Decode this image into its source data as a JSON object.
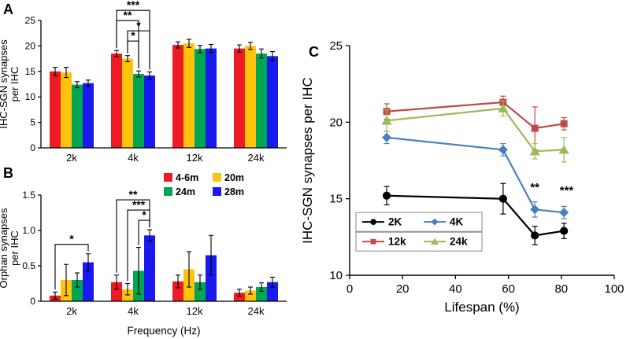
{
  "figure": {
    "panel_labels": {
      "a": "A",
      "b": "B",
      "c": "C"
    },
    "background": "#ffffff"
  },
  "chart_data": [
    {
      "id": "A",
      "type": "bar",
      "title": "",
      "ylabel_lines": [
        "IHC-SGN synapses",
        "per IHC"
      ],
      "categories": [
        "2k",
        "4k",
        "12k",
        "24k"
      ],
      "ylim": [
        0,
        25
      ],
      "yticks": [
        0,
        5,
        10,
        15,
        20,
        25
      ],
      "yticklabels": [
        "0",
        "5",
        "10",
        "15",
        "20",
        "25"
      ],
      "series": [
        {
          "name": "4-6m",
          "color": "#ED1C24",
          "values": [
            15.0,
            18.5,
            20.2,
            19.5
          ],
          "errors": [
            0.8,
            0.6,
            0.6,
            0.7
          ]
        },
        {
          "name": "20m",
          "color": "#FFC20E",
          "values": [
            14.8,
            17.5,
            20.5,
            20.0
          ],
          "errors": [
            1.0,
            0.6,
            0.8,
            0.7
          ]
        },
        {
          "name": "24m",
          "color": "#00A651",
          "values": [
            12.4,
            14.5,
            19.4,
            18.5
          ],
          "errors": [
            0.6,
            0.6,
            0.7,
            0.9
          ]
        },
        {
          "name": "28m",
          "color": "#1A1AF0",
          "values": [
            12.7,
            14.2,
            19.5,
            18.0
          ],
          "errors": [
            0.6,
            0.7,
            0.8,
            0.9
          ]
        }
      ],
      "significance": [
        {
          "category": "4k",
          "from": 0,
          "to": 3,
          "level": 3,
          "label": "***"
        },
        {
          "category": "4k",
          "from": 0,
          "to": 2,
          "level": 2,
          "label": "**"
        },
        {
          "category": "4k",
          "from": 1,
          "to": 3,
          "level": 1,
          "label": "*"
        },
        {
          "category": "4k",
          "from": 1,
          "to": 2,
          "level": 0,
          "label": "*"
        }
      ]
    },
    {
      "id": "B",
      "type": "bar",
      "title": "",
      "ylabel_lines": [
        "Orphan synapses",
        "per IHC"
      ],
      "xlabel": "Frequency (Hz)",
      "categories": [
        "2k",
        "4k",
        "12k",
        "24k"
      ],
      "ylim": [
        0,
        1.5
      ],
      "yticks": [
        0,
        0.5,
        1.0,
        1.5
      ],
      "yticklabels": [
        "0",
        "0.5",
        "1.0",
        "1.5"
      ],
      "legend_labels": [
        "4-6m",
        "20m",
        "24m",
        "28m"
      ],
      "series": [
        {
          "name": "4-6m",
          "color": "#ED1C24",
          "values": [
            0.08,
            0.27,
            0.28,
            0.12
          ],
          "errors": [
            0.05,
            0.1,
            0.09,
            0.05
          ]
        },
        {
          "name": "20m",
          "color": "#FFC20E",
          "values": [
            0.3,
            0.17,
            0.45,
            0.15
          ],
          "errors": [
            0.22,
            0.08,
            0.25,
            0.05
          ]
        },
        {
          "name": "24m",
          "color": "#00A651",
          "values": [
            0.3,
            0.43,
            0.27,
            0.2
          ],
          "errors": [
            0.1,
            0.33,
            0.1,
            0.06
          ]
        },
        {
          "name": "28m",
          "color": "#1A1AF0",
          "values": [
            0.55,
            0.93,
            0.65,
            0.27
          ],
          "errors": [
            0.12,
            0.08,
            0.28,
            0.07
          ]
        }
      ],
      "significance": [
        {
          "category": "2k",
          "from": 0,
          "to": 3,
          "level": 0,
          "label": "*"
        },
        {
          "category": "4k",
          "from": 0,
          "to": 3,
          "level": 2,
          "label": "**"
        },
        {
          "category": "4k",
          "from": 1,
          "to": 3,
          "level": 1,
          "label": "***"
        },
        {
          "category": "4k",
          "from": 2,
          "to": 3,
          "level": 0,
          "label": "*"
        }
      ]
    },
    {
      "id": "C",
      "type": "line",
      "title": "",
      "xlabel": "Lifespan (%)",
      "ylabel": "IHC-SGN synapses per IHC",
      "x": [
        14,
        58,
        70,
        81
      ],
      "xlim": [
        0,
        100
      ],
      "xticks": [
        0,
        20,
        40,
        60,
        80,
        100
      ],
      "xticklabels": [
        "0",
        "20",
        "40",
        "60",
        "80",
        "100"
      ],
      "ylim": [
        10,
        25
      ],
      "yticks": [
        10,
        15,
        20,
        25
      ],
      "yticklabels": [
        "10",
        "15",
        "20",
        "25"
      ],
      "series": [
        {
          "name": "2K",
          "marker": "circle",
          "color": "#000000",
          "values": [
            15.2,
            15.0,
            12.6,
            12.9
          ],
          "errors": [
            0.6,
            1.0,
            0.6,
            0.5
          ]
        },
        {
          "name": "4K",
          "marker": "diamond",
          "color": "#4A7EBD",
          "values": [
            19.0,
            18.2,
            14.3,
            14.1
          ],
          "errors": [
            0.4,
            0.4,
            0.5,
            0.4
          ]
        },
        {
          "name": "12k",
          "marker": "square",
          "color": "#BE4B48",
          "values": [
            20.7,
            21.3,
            19.6,
            19.9
          ],
          "errors": [
            0.5,
            0.4,
            1.4,
            0.4
          ]
        },
        {
          "name": "24k",
          "marker": "triangle",
          "color": "#9BBB59",
          "values": [
            20.1,
            20.9,
            18.1,
            18.2
          ],
          "errors": [
            0.7,
            0.5,
            0.5,
            0.8
          ]
        }
      ],
      "annotations": [
        {
          "x": 70,
          "y": 15.5,
          "label": "**"
        },
        {
          "x": 82,
          "y": 15.3,
          "label": "***"
        }
      ],
      "legend": {
        "rows": [
          [
            "2K",
            "4K"
          ],
          [
            "12k",
            "24k"
          ]
        ]
      }
    }
  ]
}
